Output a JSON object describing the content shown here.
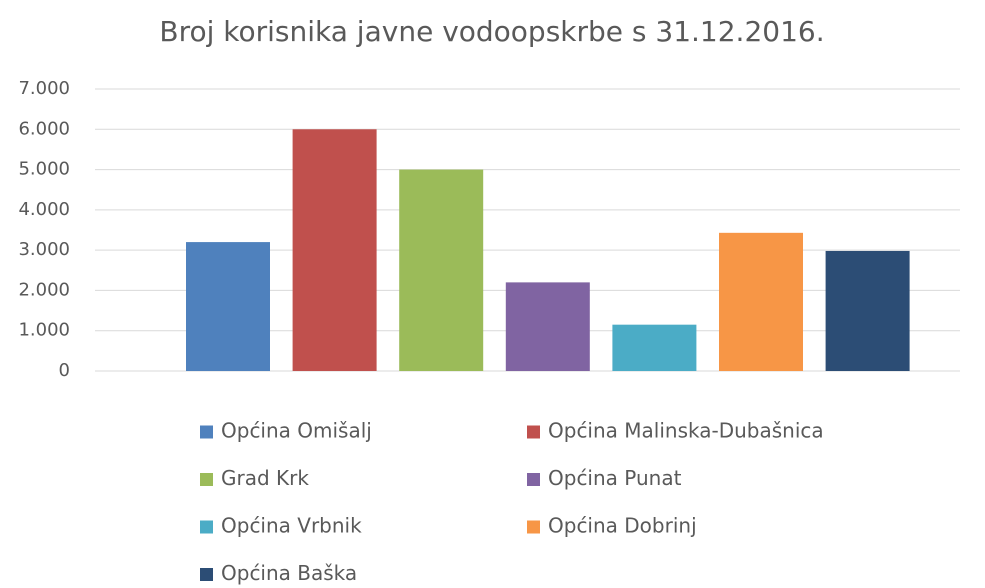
{
  "chart_data": {
    "type": "bar",
    "title": "Broj korisnika javne vodoopskrbe s 31.12.2016.",
    "categories": [
      null
    ],
    "series": [
      {
        "name": "Općina Omišalj",
        "color": "#4f81bd",
        "values": [
          3200
        ]
      },
      {
        "name": "Općina Malinska-Dubašnica",
        "color": "#c0504d",
        "values": [
          6000
        ]
      },
      {
        "name": "Grad Krk",
        "color": "#9bbb59",
        "values": [
          5000
        ]
      },
      {
        "name": "Općina Punat",
        "color": "#8064a2",
        "values": [
          2200
        ]
      },
      {
        "name": "Općina Vrbnik",
        "color": "#4bacc6",
        "values": [
          1150
        ]
      },
      {
        "name": "Općina Dobrinj",
        "color": "#f79646",
        "values": [
          3430
        ]
      },
      {
        "name": "Općina Baška",
        "color": "#2c4d75",
        "values": [
          2980
        ]
      }
    ],
    "ylim": [
      0,
      7000
    ],
    "yticks": [
      0,
      {
        "value": 1000,
        "label": "1.000"
      },
      {
        "value": 2000,
        "label": "2.000"
      },
      {
        "value": 3000,
        "label": "3.000"
      },
      {
        "value": 4000,
        "label": "4.000"
      },
      {
        "value": 5000,
        "label": "5.000"
      },
      {
        "value": 6000,
        "label": "6.000"
      },
      {
        "value": 7000,
        "label": "7.000"
      }
    ],
    "grid": true
  }
}
